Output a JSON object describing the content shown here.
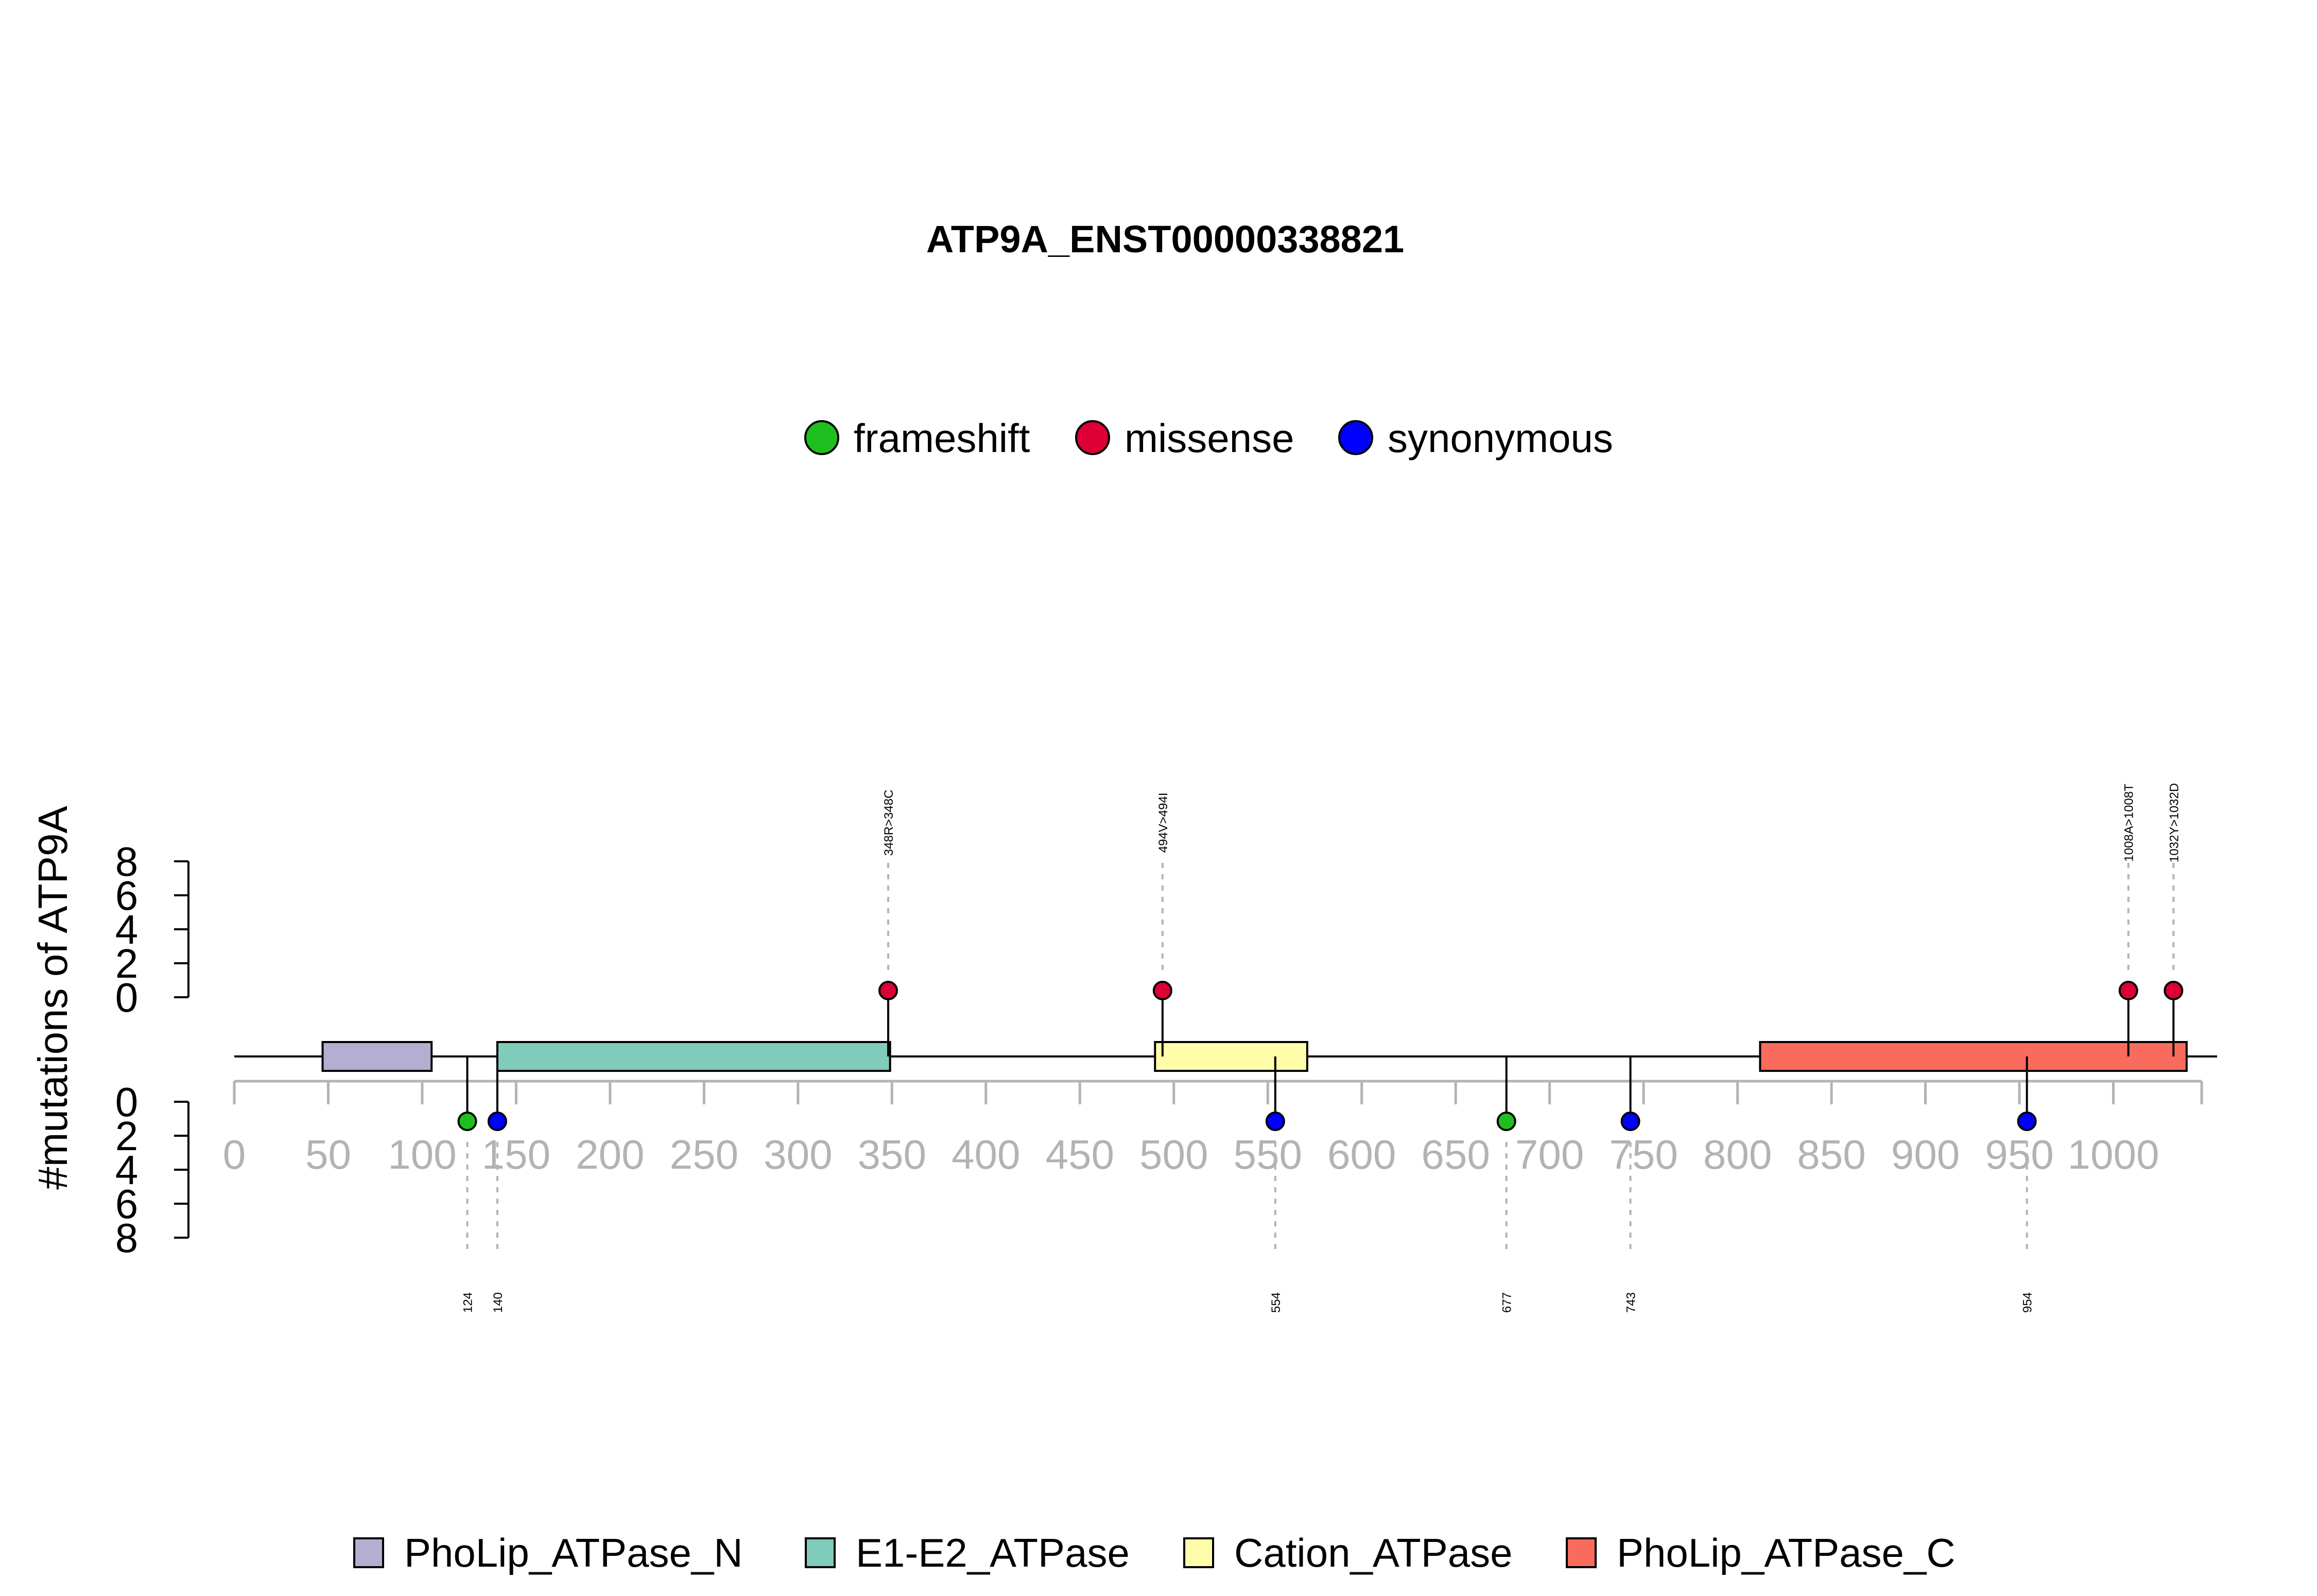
{
  "title": "ATP9A_ENST00000338821",
  "ylabel": "#mutations of ATP9A",
  "colors": {
    "frameshift": "#1fbf1f",
    "missense": "#dc0035",
    "synonymous": "#0000ff",
    "domain_border": "#000000",
    "x_axis": "#b3b3b3",
    "guide": "#b3b3b3"
  },
  "mutation_legend": [
    {
      "name": "frameshift",
      "color": "#1fbf1f"
    },
    {
      "name": "missense",
      "color": "#dc0035"
    },
    {
      "name": "synonymous",
      "color": "#0000ff"
    }
  ],
  "domain_legend": [
    {
      "name": "PhoLip_ATPase_N",
      "color": "#b3aed2"
    },
    {
      "name": "E1-E2_ATPase",
      "color": "#80ccbb"
    },
    {
      "name": "Cation_ATPase",
      "color": "#fffcaa"
    },
    {
      "name": "PhoLip_ATPase_C",
      "color": "#f96b5d"
    }
  ],
  "chart_data": {
    "type": "lollipop",
    "title": "ATP9A_ENST00000338821",
    "xlabel": "",
    "ylabel": "#mutations of ATP9A",
    "protein_length": 1047,
    "xlim": [
      0,
      1047
    ],
    "x_ticks": [
      0,
      50,
      100,
      150,
      200,
      250,
      300,
      350,
      400,
      450,
      500,
      550,
      600,
      650,
      700,
      750,
      800,
      850,
      900,
      950,
      1000
    ],
    "y_ticks_top": [
      0,
      2,
      4,
      6,
      8
    ],
    "y_ticks_bottom": [
      0,
      2,
      4,
      6,
      8
    ],
    "ylim": [
      0,
      8
    ],
    "domains": [
      {
        "name": "PhoLip_ATPase_N",
        "start": 47,
        "end": 105,
        "color": "#b3aed2"
      },
      {
        "name": "E1-E2_ATPase",
        "start": 140,
        "end": 349,
        "color": "#80ccbb"
      },
      {
        "name": "Cation_ATPase",
        "start": 490,
        "end": 571,
        "color": "#fffcaa"
      },
      {
        "name": "PhoLip_ATPase_C",
        "start": 812,
        "end": 1039,
        "color": "#f96b5d"
      }
    ],
    "mutations_top": [
      {
        "position": 348,
        "label": "348R>348C",
        "type": "missense",
        "count": 1
      },
      {
        "position": 494,
        "label": "494V>494I",
        "type": "missense",
        "count": 1
      },
      {
        "position": 1008,
        "label": "1008A>1008T",
        "type": "missense",
        "count": 1
      },
      {
        "position": 1032,
        "label": "1032Y>1032D",
        "type": "missense",
        "count": 1
      }
    ],
    "mutations_bottom": [
      {
        "position": 124,
        "label": "124",
        "type": "frameshift",
        "count": 1
      },
      {
        "position": 140,
        "label": "140",
        "type": "synonymous",
        "count": 1
      },
      {
        "position": 554,
        "label": "554",
        "type": "synonymous",
        "count": 1
      },
      {
        "position": 677,
        "label": "677",
        "type": "frameshift",
        "count": 1
      },
      {
        "position": 743,
        "label": "743",
        "type": "synonymous",
        "count": 1
      },
      {
        "position": 954,
        "label": "954",
        "type": "synonymous",
        "count": 1
      }
    ],
    "legend_position": "top-center",
    "domain_legend_position": "bottom-center"
  }
}
